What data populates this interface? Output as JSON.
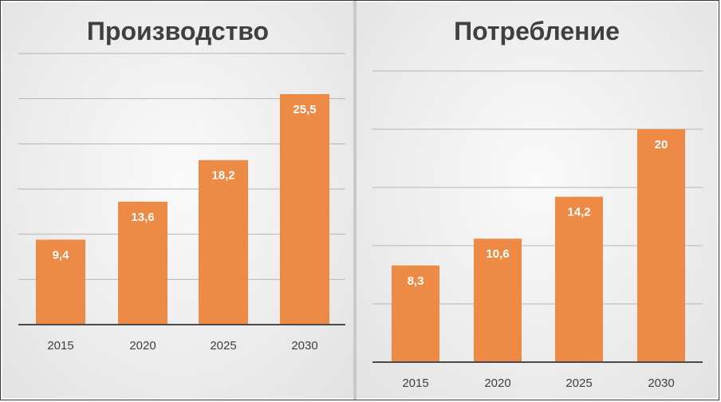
{
  "chart_data": [
    {
      "type": "bar",
      "title": "Производство",
      "categories": [
        "2015",
        "2020",
        "2025",
        "2030"
      ],
      "values": [
        9.4,
        13.6,
        18.2,
        25.5
      ],
      "value_labels": [
        "9,4",
        "13,6",
        "18,2",
        "25,5"
      ],
      "ylim": [
        0,
        30
      ],
      "grid": true,
      "bar_color": "#ED8A45"
    },
    {
      "type": "bar",
      "title": "Потребление",
      "categories": [
        "2015",
        "2020",
        "2025",
        "2030"
      ],
      "values": [
        8.3,
        10.6,
        14.2,
        20
      ],
      "value_labels": [
        "8,3",
        "10,6",
        "14,2",
        "20"
      ],
      "ylim": [
        0,
        25
      ],
      "grid": true,
      "bar_color": "#ED8A45"
    }
  ]
}
